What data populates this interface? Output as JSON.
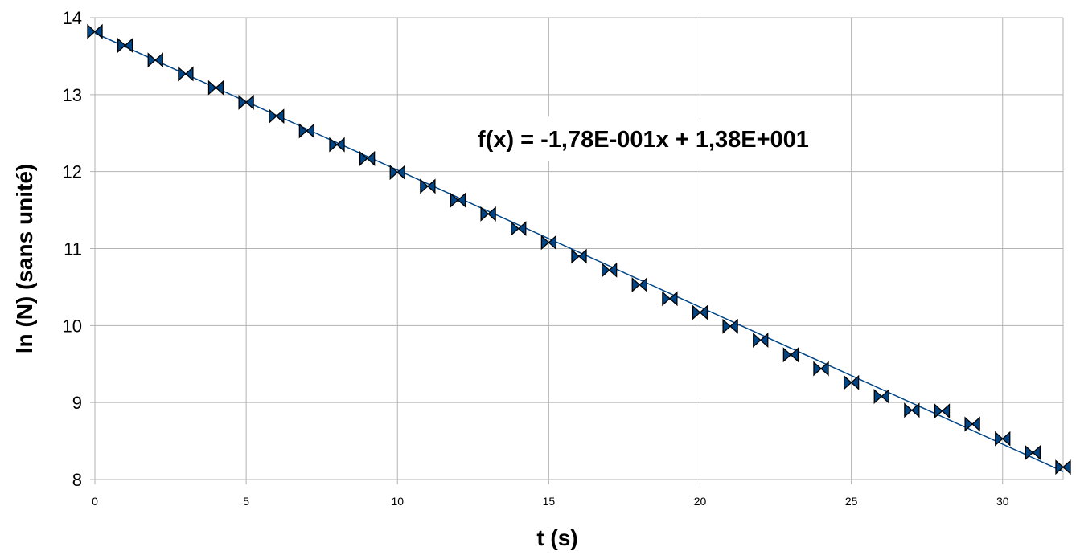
{
  "chart_data": {
    "type": "scatter",
    "title": "",
    "xlabel": "t (s)",
    "ylabel": "ln (N) (sans unité)",
    "xlim": [
      0,
      32
    ],
    "ylim": [
      8,
      14
    ],
    "grid": true,
    "legend": "none",
    "x_ticks": [
      0,
      5,
      10,
      15,
      20,
      25,
      30
    ],
    "y_ticks": [
      8,
      9,
      10,
      11,
      12,
      13,
      14
    ],
    "series": [
      {
        "marker": "bowtie",
        "color": "#004586",
        "x": [
          0,
          1,
          2,
          3,
          4,
          5,
          6,
          7,
          8,
          9,
          10,
          11,
          12,
          13,
          14,
          15,
          16,
          17,
          18,
          19,
          20,
          21,
          22,
          23,
          24,
          25,
          26,
          27,
          28,
          29,
          30,
          31,
          32
        ],
        "y": [
          13.82,
          13.64,
          13.45,
          13.27,
          13.09,
          12.9,
          12.72,
          12.53,
          12.35,
          12.17,
          11.99,
          11.81,
          11.63,
          11.45,
          11.26,
          11.08,
          10.9,
          10.72,
          10.53,
          10.35,
          10.17,
          9.99,
          9.81,
          9.62,
          9.44,
          9.26,
          9.08,
          8.9,
          8.89,
          8.72,
          8.53,
          8.35,
          8.16
        ]
      }
    ],
    "trendline": {
      "slope": -0.178,
      "intercept": 13.8,
      "color": "#004586",
      "equation_label": "f(x) = -1,78E-001x + 1,38E+001"
    },
    "colors": {
      "grid": "#b3b3b3",
      "axis": "#b3b3b3",
      "marker_fill": "#004586",
      "marker_stroke": "#000000"
    }
  }
}
